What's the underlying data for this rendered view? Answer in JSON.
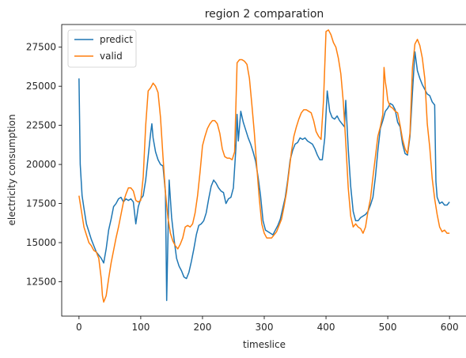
{
  "chart_data": {
    "type": "line",
    "title": "region 2 comparation",
    "xlabel": "timeslice",
    "ylabel": "electricity consumption",
    "xlim": [
      -28,
      628
    ],
    "ylim": [
      10300,
      28950
    ],
    "xticks": [
      0,
      100,
      200,
      300,
      400,
      500,
      600
    ],
    "yticks": [
      12500,
      15000,
      17500,
      20000,
      22500,
      25000,
      27500
    ],
    "grid": false,
    "legend_position": "top-left",
    "series": [
      {
        "name": "predict",
        "color": "#1f77b4",
        "points": [
          [
            0,
            25500
          ],
          [
            2,
            20000
          ],
          [
            5,
            18000
          ],
          [
            8,
            17200
          ],
          [
            12,
            16200
          ],
          [
            16,
            15700
          ],
          [
            20,
            15200
          ],
          [
            24,
            14800
          ],
          [
            28,
            14400
          ],
          [
            32,
            14200
          ],
          [
            36,
            14000
          ],
          [
            40,
            13700
          ],
          [
            44,
            14600
          ],
          [
            48,
            15800
          ],
          [
            52,
            16500
          ],
          [
            56,
            17300
          ],
          [
            60,
            17500
          ],
          [
            64,
            17800
          ],
          [
            68,
            17900
          ],
          [
            72,
            17600
          ],
          [
            76,
            17800
          ],
          [
            80,
            17700
          ],
          [
            84,
            17800
          ],
          [
            88,
            17600
          ],
          [
            92,
            16200
          ],
          [
            96,
            17300
          ],
          [
            100,
            17800
          ],
          [
            104,
            18000
          ],
          [
            108,
            19000
          ],
          [
            112,
            20500
          ],
          [
            116,
            22000
          ],
          [
            118,
            22600
          ],
          [
            120,
            21700
          ],
          [
            124,
            20800
          ],
          [
            128,
            20300
          ],
          [
            132,
            20000
          ],
          [
            136,
            19900
          ],
          [
            140,
            18200
          ],
          [
            142,
            11300
          ],
          [
            144,
            15200
          ],
          [
            146,
            19000
          ],
          [
            150,
            16600
          ],
          [
            154,
            15200
          ],
          [
            158,
            14000
          ],
          [
            162,
            13500
          ],
          [
            166,
            13200
          ],
          [
            170,
            12800
          ],
          [
            174,
            12700
          ],
          [
            178,
            13100
          ],
          [
            182,
            13800
          ],
          [
            186,
            14600
          ],
          [
            190,
            15500
          ],
          [
            194,
            16100
          ],
          [
            198,
            16200
          ],
          [
            202,
            16400
          ],
          [
            206,
            16900
          ],
          [
            210,
            17800
          ],
          [
            214,
            18600
          ],
          [
            218,
            19000
          ],
          [
            222,
            18800
          ],
          [
            226,
            18500
          ],
          [
            230,
            18300
          ],
          [
            234,
            18200
          ],
          [
            238,
            17500
          ],
          [
            242,
            17800
          ],
          [
            246,
            17900
          ],
          [
            250,
            18500
          ],
          [
            254,
            21000
          ],
          [
            256,
            23200
          ],
          [
            258,
            21500
          ],
          [
            262,
            23400
          ],
          [
            266,
            22700
          ],
          [
            270,
            22200
          ],
          [
            274,
            21700
          ],
          [
            278,
            21300
          ],
          [
            282,
            20800
          ],
          [
            286,
            20200
          ],
          [
            290,
            19200
          ],
          [
            294,
            18000
          ],
          [
            298,
            16400
          ],
          [
            302,
            15800
          ],
          [
            306,
            15700
          ],
          [
            310,
            15600
          ],
          [
            314,
            15500
          ],
          [
            318,
            15800
          ],
          [
            322,
            16100
          ],
          [
            326,
            16500
          ],
          [
            330,
            17200
          ],
          [
            334,
            17900
          ],
          [
            338,
            19000
          ],
          [
            342,
            20300
          ],
          [
            346,
            20900
          ],
          [
            350,
            21300
          ],
          [
            354,
            21400
          ],
          [
            358,
            21700
          ],
          [
            362,
            21600
          ],
          [
            366,
            21700
          ],
          [
            370,
            21500
          ],
          [
            374,
            21400
          ],
          [
            378,
            21300
          ],
          [
            382,
            21000
          ],
          [
            386,
            20600
          ],
          [
            390,
            20300
          ],
          [
            394,
            20300
          ],
          [
            398,
            21700
          ],
          [
            402,
            24700
          ],
          [
            406,
            23400
          ],
          [
            410,
            23000
          ],
          [
            414,
            22900
          ],
          [
            418,
            23100
          ],
          [
            422,
            22800
          ],
          [
            426,
            22600
          ],
          [
            430,
            22400
          ],
          [
            432,
            24100
          ],
          [
            436,
            21000
          ],
          [
            440,
            18600
          ],
          [
            444,
            17000
          ],
          [
            448,
            16400
          ],
          [
            452,
            16400
          ],
          [
            456,
            16600
          ],
          [
            460,
            16700
          ],
          [
            464,
            16800
          ],
          [
            468,
            17000
          ],
          [
            472,
            17400
          ],
          [
            476,
            17900
          ],
          [
            480,
            19200
          ],
          [
            484,
            20900
          ],
          [
            488,
            22300
          ],
          [
            492,
            22800
          ],
          [
            496,
            23400
          ],
          [
            500,
            23600
          ],
          [
            504,
            23900
          ],
          [
            508,
            23800
          ],
          [
            512,
            23500
          ],
          [
            516,
            22700
          ],
          [
            520,
            22400
          ],
          [
            524,
            21300
          ],
          [
            528,
            20700
          ],
          [
            532,
            20600
          ],
          [
            536,
            21800
          ],
          [
            540,
            24600
          ],
          [
            544,
            27200
          ],
          [
            548,
            26000
          ],
          [
            552,
            25500
          ],
          [
            556,
            25100
          ],
          [
            560,
            24800
          ],
          [
            564,
            24500
          ],
          [
            568,
            24400
          ],
          [
            572,
            24000
          ],
          [
            576,
            23800
          ],
          [
            578,
            18900
          ],
          [
            580,
            17900
          ],
          [
            584,
            17500
          ],
          [
            588,
            17600
          ],
          [
            592,
            17400
          ],
          [
            596,
            17400
          ],
          [
            600,
            17600
          ]
        ]
      },
      {
        "name": "valid",
        "color": "#ff7f0e",
        "points": [
          [
            0,
            18000
          ],
          [
            4,
            17000
          ],
          [
            8,
            16000
          ],
          [
            12,
            15500
          ],
          [
            16,
            15000
          ],
          [
            20,
            14800
          ],
          [
            24,
            14500
          ],
          [
            28,
            14400
          ],
          [
            32,
            14000
          ],
          [
            36,
            12700
          ],
          [
            38,
            11600
          ],
          [
            40,
            11200
          ],
          [
            44,
            11600
          ],
          [
            48,
            12700
          ],
          [
            52,
            13700
          ],
          [
            56,
            14500
          ],
          [
            60,
            15300
          ],
          [
            64,
            16000
          ],
          [
            68,
            16800
          ],
          [
            72,
            17600
          ],
          [
            76,
            18100
          ],
          [
            80,
            18500
          ],
          [
            84,
            18500
          ],
          [
            88,
            18300
          ],
          [
            92,
            17700
          ],
          [
            96,
            17600
          ],
          [
            100,
            17700
          ],
          [
            104,
            19200
          ],
          [
            108,
            22500
          ],
          [
            112,
            24700
          ],
          [
            116,
            24900
          ],
          [
            120,
            25200
          ],
          [
            124,
            25000
          ],
          [
            128,
            24600
          ],
          [
            132,
            23000
          ],
          [
            136,
            20500
          ],
          [
            140,
            18200
          ],
          [
            144,
            16600
          ],
          [
            148,
            15600
          ],
          [
            152,
            15100
          ],
          [
            156,
            14800
          ],
          [
            160,
            14600
          ],
          [
            164,
            14900
          ],
          [
            168,
            15300
          ],
          [
            172,
            16000
          ],
          [
            176,
            16100
          ],
          [
            180,
            16000
          ],
          [
            184,
            16200
          ],
          [
            188,
            16900
          ],
          [
            192,
            18000
          ],
          [
            196,
            19500
          ],
          [
            200,
            21200
          ],
          [
            204,
            21800
          ],
          [
            208,
            22300
          ],
          [
            212,
            22600
          ],
          [
            216,
            22800
          ],
          [
            220,
            22800
          ],
          [
            224,
            22600
          ],
          [
            228,
            22000
          ],
          [
            232,
            21000
          ],
          [
            236,
            20500
          ],
          [
            240,
            20400
          ],
          [
            244,
            20400
          ],
          [
            248,
            20300
          ],
          [
            252,
            20800
          ],
          [
            256,
            26500
          ],
          [
            260,
            26700
          ],
          [
            264,
            26700
          ],
          [
            268,
            26600
          ],
          [
            272,
            26400
          ],
          [
            276,
            25500
          ],
          [
            280,
            23800
          ],
          [
            284,
            22000
          ],
          [
            288,
            19800
          ],
          [
            292,
            17800
          ],
          [
            296,
            16200
          ],
          [
            300,
            15600
          ],
          [
            304,
            15300
          ],
          [
            308,
            15300
          ],
          [
            312,
            15300
          ],
          [
            316,
            15500
          ],
          [
            320,
            15700
          ],
          [
            324,
            16100
          ],
          [
            328,
            16500
          ],
          [
            332,
            17300
          ],
          [
            336,
            18200
          ],
          [
            340,
            19500
          ],
          [
            344,
            20800
          ],
          [
            348,
            21800
          ],
          [
            352,
            22400
          ],
          [
            356,
            22900
          ],
          [
            360,
            23300
          ],
          [
            364,
            23500
          ],
          [
            368,
            23500
          ],
          [
            372,
            23400
          ],
          [
            376,
            23300
          ],
          [
            380,
            22800
          ],
          [
            384,
            22100
          ],
          [
            388,
            21800
          ],
          [
            392,
            21600
          ],
          [
            396,
            24100
          ],
          [
            400,
            28500
          ],
          [
            404,
            28600
          ],
          [
            408,
            28300
          ],
          [
            412,
            27800
          ],
          [
            416,
            27500
          ],
          [
            420,
            26800
          ],
          [
            424,
            25800
          ],
          [
            428,
            24000
          ],
          [
            432,
            21400
          ],
          [
            436,
            18500
          ],
          [
            440,
            16700
          ],
          [
            444,
            16000
          ],
          [
            448,
            16200
          ],
          [
            452,
            16000
          ],
          [
            456,
            15900
          ],
          [
            460,
            15600
          ],
          [
            464,
            16000
          ],
          [
            468,
            17000
          ],
          [
            472,
            17800
          ],
          [
            476,
            19200
          ],
          [
            480,
            20500
          ],
          [
            484,
            21800
          ],
          [
            488,
            22400
          ],
          [
            492,
            23200
          ],
          [
            494,
            26200
          ],
          [
            496,
            25300
          ],
          [
            498,
            24800
          ],
          [
            500,
            24100
          ],
          [
            504,
            23700
          ],
          [
            508,
            23600
          ],
          [
            512,
            23400
          ],
          [
            516,
            23300
          ],
          [
            520,
            22500
          ],
          [
            524,
            21600
          ],
          [
            528,
            21000
          ],
          [
            532,
            20700
          ],
          [
            536,
            22000
          ],
          [
            540,
            26200
          ],
          [
            544,
            27700
          ],
          [
            548,
            28000
          ],
          [
            552,
            27600
          ],
          [
            556,
            26800
          ],
          [
            560,
            25500
          ],
          [
            564,
            22600
          ],
          [
            568,
            21100
          ],
          [
            572,
            19100
          ],
          [
            576,
            17800
          ],
          [
            580,
            16800
          ],
          [
            584,
            16000
          ],
          [
            588,
            15700
          ],
          [
            592,
            15800
          ],
          [
            596,
            15600
          ],
          [
            600,
            15600
          ]
        ]
      }
    ]
  }
}
